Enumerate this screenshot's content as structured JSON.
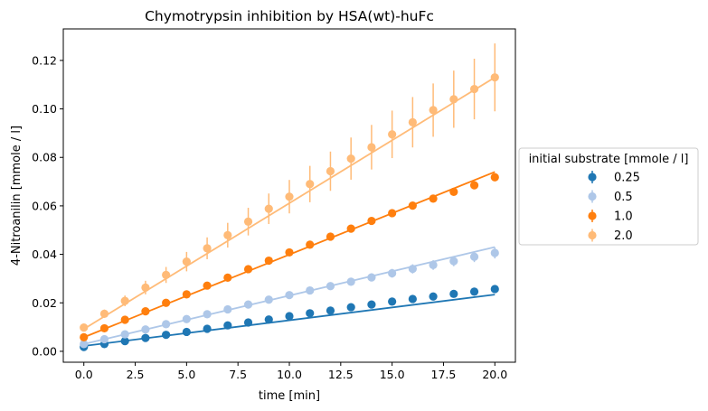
{
  "chart_data": {
    "type": "scatter",
    "title": "Chymotrypsin inhibition by HSA(wt)-huFc",
    "xlabel": "time [min]",
    "ylabel": "4-Nitroanilin [mmole / l]",
    "xlim": [
      -1.0,
      21.0
    ],
    "ylim": [
      -0.0045,
      0.133
    ],
    "xticks": [
      "0.0",
      "2.5",
      "5.0",
      "7.5",
      "10.0",
      "12.5",
      "15.0",
      "17.5",
      "20.0"
    ],
    "xtick_values": [
      0,
      2.5,
      5,
      7.5,
      10,
      12.5,
      15,
      17.5,
      20
    ],
    "yticks": [
      "0.00",
      "0.02",
      "0.04",
      "0.06",
      "0.08",
      "0.10",
      "0.12"
    ],
    "ytick_values": [
      0,
      0.02,
      0.04,
      0.06,
      0.08,
      0.1,
      0.12
    ],
    "grid": false,
    "legend": {
      "title": "initial substrate [mmole / l]",
      "placement": "outside-right"
    },
    "x": [
      0,
      1,
      2,
      3,
      4,
      5,
      6,
      7,
      8,
      9,
      10,
      11,
      12,
      13,
      14,
      15,
      16,
      17,
      18,
      19,
      20
    ],
    "series": [
      {
        "name": "0.25",
        "color": "#1f77b4",
        "values": [
          0.0018,
          0.003,
          0.0042,
          0.0055,
          0.0068,
          0.008,
          0.0093,
          0.0107,
          0.0119,
          0.0131,
          0.0145,
          0.0157,
          0.0168,
          0.0182,
          0.0193,
          0.0205,
          0.0216,
          0.0226,
          0.0237,
          0.0246,
          0.0257
        ],
        "errors": [
          0.0002,
          0.0002,
          0.0002,
          0.0003,
          0.0003,
          0.0003,
          0.0003,
          0.0004,
          0.0004,
          0.0004,
          0.0005,
          0.0005,
          0.0005,
          0.0005,
          0.0006,
          0.0006,
          0.0006,
          0.0007,
          0.0007,
          0.0007,
          0.0008
        ],
        "fit": [
          0.0022,
          0.0234
        ]
      },
      {
        "name": "0.5",
        "color": "#aec7e8",
        "values": [
          0.003,
          0.005,
          0.007,
          0.009,
          0.0112,
          0.0133,
          0.0153,
          0.0173,
          0.0193,
          0.0213,
          0.0232,
          0.0251,
          0.0269,
          0.0287,
          0.0305,
          0.0322,
          0.034,
          0.0356,
          0.0372,
          0.039,
          0.0406
        ],
        "errors": [
          0.0003,
          0.0004,
          0.0005,
          0.0006,
          0.0007,
          0.0008,
          0.0009,
          0.001,
          0.0011,
          0.0012,
          0.0013,
          0.0014,
          0.0015,
          0.0016,
          0.0017,
          0.0018,
          0.0019,
          0.002,
          0.0021,
          0.0022,
          0.0023
        ],
        "fit": [
          0.003,
          0.043
        ]
      },
      {
        "name": "1.0",
        "color": "#ff7f0e",
        "values": [
          0.0058,
          0.0095,
          0.013,
          0.0165,
          0.02,
          0.0235,
          0.0271,
          0.0304,
          0.0339,
          0.0374,
          0.0408,
          0.044,
          0.0473,
          0.0506,
          0.0538,
          0.057,
          0.0601,
          0.063,
          0.0658,
          0.0685,
          0.0718
        ],
        "errors": [
          0.0003,
          0.0003,
          0.0004,
          0.0004,
          0.0005,
          0.0005,
          0.0006,
          0.0006,
          0.0007,
          0.0007,
          0.0008,
          0.0008,
          0.0009,
          0.0009,
          0.001,
          0.001,
          0.0011,
          0.0011,
          0.0012,
          0.0012,
          0.0013
        ],
        "fit": [
          0.0058,
          0.074
        ]
      },
      {
        "name": "2.0",
        "color": "#ffbb78",
        "values": [
          0.0098,
          0.0155,
          0.0208,
          0.0263,
          0.0315,
          0.037,
          0.0425,
          0.0479,
          0.0535,
          0.0588,
          0.0638,
          0.069,
          0.0743,
          0.0795,
          0.0842,
          0.0895,
          0.0945,
          0.0995,
          0.104,
          0.1082,
          0.113
        ],
        "errors": [
          0.001,
          0.0017,
          0.0022,
          0.0028,
          0.0033,
          0.004,
          0.0045,
          0.0051,
          0.0057,
          0.0063,
          0.0069,
          0.0075,
          0.0081,
          0.0087,
          0.0092,
          0.0098,
          0.0104,
          0.011,
          0.0118,
          0.0125,
          0.014
        ],
        "fit": [
          0.0092,
          0.113
        ]
      }
    ]
  }
}
